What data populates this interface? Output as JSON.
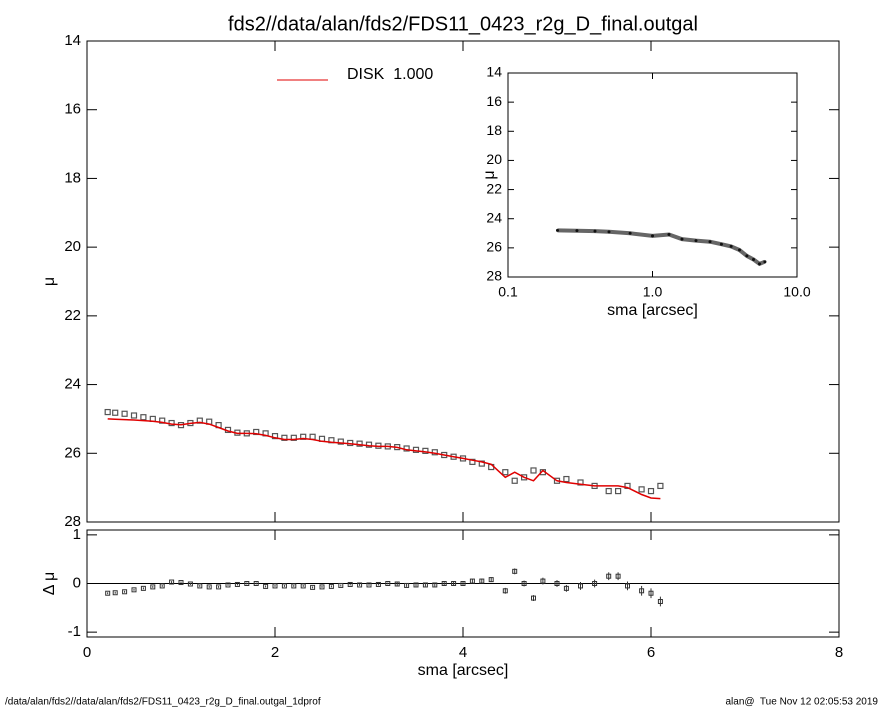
{
  "chart_data": [
    {
      "type": "scatter",
      "title": "fds2//data/alan/fds2/FDS11_0423_r2g_D_final.outgal",
      "ylabel": "μ",
      "xlim": [
        0,
        8
      ],
      "xticks": [
        0,
        2,
        4,
        6,
        8
      ],
      "ylim": [
        28,
        14
      ],
      "yticks": [
        14,
        16,
        18,
        20,
        22,
        24,
        26,
        28
      ],
      "x": [
        0.22,
        0.3,
        0.4,
        0.5,
        0.6,
        0.7,
        0.8,
        0.9,
        1.0,
        1.1,
        1.2,
        1.3,
        1.4,
        1.5,
        1.6,
        1.7,
        1.8,
        1.9,
        2.0,
        2.1,
        2.2,
        2.3,
        2.4,
        2.5,
        2.6,
        2.7,
        2.8,
        2.9,
        3.0,
        3.1,
        3.2,
        3.3,
        3.4,
        3.5,
        3.6,
        3.7,
        3.8,
        3.9,
        4.0,
        4.1,
        4.2,
        4.3,
        4.45,
        4.55,
        4.65,
        4.75,
        4.85,
        5.0,
        5.1,
        5.25,
        5.4,
        5.55,
        5.65,
        5.75,
        5.9,
        6.0,
        6.1
      ],
      "series": [
        {
          "color": "#555555",
          "mode": "markers",
          "values": [
            24.8,
            24.82,
            24.85,
            24.9,
            24.95,
            25.0,
            25.05,
            25.12,
            25.18,
            25.12,
            25.05,
            25.08,
            25.18,
            25.32,
            25.4,
            25.42,
            25.38,
            25.42,
            25.5,
            25.55,
            25.55,
            25.52,
            25.52,
            25.58,
            25.62,
            25.66,
            25.7,
            25.72,
            25.75,
            25.78,
            25.8,
            25.82,
            25.86,
            25.9,
            25.93,
            25.97,
            26.05,
            26.1,
            26.15,
            26.25,
            26.3,
            26.4,
            26.55,
            26.8,
            26.7,
            26.5,
            26.55,
            26.8,
            26.75,
            26.85,
            26.95,
            27.1,
            27.1,
            26.95,
            27.05,
            27.1,
            26.95
          ]
        },
        {
          "name": "DISK  1.000",
          "color": "#e00000",
          "mode": "line",
          "values": [
            25.0,
            25.01,
            25.02,
            25.03,
            25.05,
            25.07,
            25.1,
            25.15,
            25.17,
            25.13,
            25.1,
            25.15,
            25.25,
            25.35,
            25.42,
            25.42,
            25.43,
            25.48,
            25.55,
            25.6,
            25.6,
            25.57,
            25.6,
            25.65,
            25.68,
            25.7,
            25.72,
            25.75,
            25.78,
            25.8,
            25.8,
            25.83,
            25.9,
            25.93,
            25.96,
            26.0,
            26.05,
            26.1,
            26.15,
            26.2,
            26.25,
            26.32,
            26.7,
            26.55,
            26.7,
            26.8,
            26.5,
            26.8,
            26.85,
            26.9,
            26.95,
            26.95,
            26.95,
            27.0,
            27.2,
            27.3,
            27.32
          ]
        }
      ]
    },
    {
      "type": "line",
      "xlog": true,
      "xlabel": "sma [arcsec]",
      "ylabel": "μ",
      "xlim": [
        0.1,
        10
      ],
      "xticks": [
        0.1,
        {
          "value": 1,
          "label": "1.0"
        },
        {
          "value": 10,
          "label": "10.0"
        }
      ],
      "ylim": [
        28,
        14
      ],
      "yticks": [
        14,
        16,
        18,
        20,
        22,
        24,
        26,
        28
      ],
      "x": [
        0.22,
        0.3,
        0.4,
        0.5,
        0.7,
        1.0,
        1.3,
        1.6,
        2.0,
        2.5,
        3.0,
        3.5,
        4.0,
        4.5,
        5.0,
        5.5,
        6.0
      ],
      "series": [
        {
          "color": "#666666",
          "values": [
            24.8,
            24.82,
            24.85,
            24.9,
            25.0,
            25.18,
            25.08,
            25.4,
            25.5,
            25.58,
            25.75,
            25.9,
            26.15,
            26.55,
            26.8,
            27.1,
            26.95
          ]
        }
      ]
    },
    {
      "type": "errorbar",
      "xlabel": "sma [arcsec]",
      "ylabel": "Δ μ",
      "xlim": [
        0,
        8
      ],
      "xticks": [
        0,
        2,
        4,
        6,
        8
      ],
      "ylim": [
        -1.1,
        1.1
      ],
      "yticks": [
        -1,
        0,
        1
      ],
      "hline": 0,
      "color": "#333333",
      "x": [
        0.22,
        0.3,
        0.4,
        0.5,
        0.6,
        0.7,
        0.8,
        0.9,
        1.0,
        1.1,
        1.2,
        1.3,
        1.4,
        1.5,
        1.6,
        1.7,
        1.8,
        1.9,
        2.0,
        2.1,
        2.2,
        2.3,
        2.4,
        2.5,
        2.6,
        2.7,
        2.8,
        2.9,
        3.0,
        3.1,
        3.2,
        3.3,
        3.4,
        3.5,
        3.6,
        3.7,
        3.8,
        3.9,
        4.0,
        4.1,
        4.2,
        4.3,
        4.45,
        4.55,
        4.65,
        4.75,
        4.85,
        5.0,
        5.1,
        5.25,
        5.4,
        5.55,
        5.65,
        5.75,
        5.9,
        6.0,
        6.1
      ],
      "values": [
        -0.2,
        -0.19,
        -0.17,
        -0.13,
        -0.1,
        -0.07,
        -0.05,
        0.03,
        0.02,
        -0.01,
        -0.05,
        -0.07,
        -0.07,
        -0.03,
        -0.02,
        0.0,
        0.0,
        -0.06,
        -0.05,
        -0.05,
        -0.05,
        -0.05,
        -0.08,
        -0.07,
        -0.06,
        -0.04,
        -0.02,
        -0.03,
        -0.03,
        -0.02,
        0.0,
        -0.01,
        -0.04,
        -0.03,
        -0.03,
        -0.03,
        0.0,
        0.0,
        0.0,
        0.05,
        0.05,
        0.08,
        -0.15,
        0.25,
        0.0,
        -0.3,
        0.05,
        0.0,
        -0.1,
        -0.05,
        0.0,
        0.15,
        0.15,
        -0.05,
        -0.15,
        -0.2,
        -0.37
      ],
      "errors": [
        0.02,
        0.02,
        0.02,
        0.02,
        0.02,
        0.02,
        0.02,
        0.02,
        0.02,
        0.02,
        0.02,
        0.02,
        0.02,
        0.02,
        0.02,
        0.02,
        0.02,
        0.02,
        0.02,
        0.02,
        0.02,
        0.02,
        0.02,
        0.02,
        0.02,
        0.02,
        0.02,
        0.02,
        0.02,
        0.02,
        0.02,
        0.03,
        0.03,
        0.03,
        0.03,
        0.03,
        0.03,
        0.04,
        0.04,
        0.04,
        0.05,
        0.05,
        0.06,
        0.06,
        0.06,
        0.06,
        0.07,
        0.07,
        0.07,
        0.08,
        0.08,
        0.08,
        0.08,
        0.09,
        0.1,
        0.1,
        0.1
      ]
    }
  ],
  "footer": {
    "left": "/data/alan/fds2//data/alan/fds2/FDS11_0423_r2g_D_final.outgal_1dprof",
    "right": "alan@  Tue Nov 12 02:05:53 2019"
  }
}
